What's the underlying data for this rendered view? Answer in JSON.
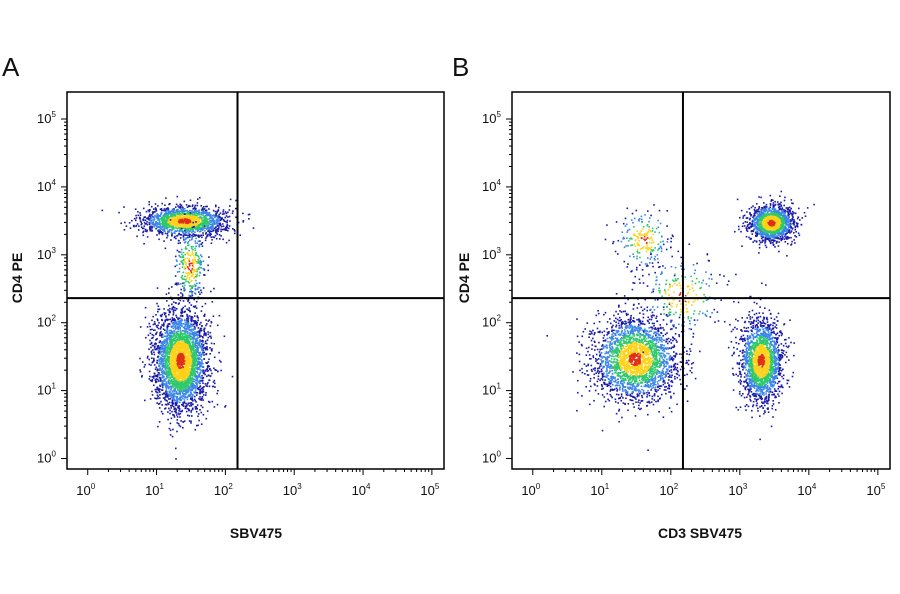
{
  "chart_data": [
    {
      "type": "scatter",
      "panel_label": "A",
      "title": "",
      "xlabel": "SBV475",
      "ylabel": "CD4 PE",
      "x_scale": "log",
      "y_scale": "log",
      "xlim": [
        0.5,
        150000
      ],
      "ylim": [
        0.7,
        250000
      ],
      "x_ticks": [
        1,
        10,
        100,
        1000,
        10000,
        100000
      ],
      "y_ticks": [
        1,
        10,
        100,
        1000,
        10000,
        100000
      ],
      "tick_labels": [
        {
          "base": "10",
          "exp": "0"
        },
        {
          "base": "10",
          "exp": "1"
        },
        {
          "base": "10",
          "exp": "2"
        },
        {
          "base": "10",
          "exp": "3"
        },
        {
          "base": "10",
          "exp": "4"
        },
        {
          "base": "10",
          "exp": "5"
        }
      ],
      "gate": {
        "x": 150,
        "y": 230
      },
      "grid": false,
      "legend": "none",
      "density_colors": [
        "#1a1aa8",
        "#3b86e8",
        "#2ec96b",
        "#ffd21a",
        "#e03018"
      ],
      "populations": [
        {
          "cx": 25,
          "cy": 3200,
          "log_sd_x": 0.3,
          "log_sd_y": 0.11,
          "count": 1600
        },
        {
          "cx": 22,
          "cy": 28,
          "log_sd_x": 0.19,
          "log_sd_y": 0.36,
          "count": 3200
        },
        {
          "cx": 30,
          "cy": 700,
          "log_sd_x": 0.12,
          "log_sd_y": 0.28,
          "count": 280
        }
      ]
    },
    {
      "type": "scatter",
      "panel_label": "B",
      "title": "",
      "xlabel": "CD3 SBV475",
      "ylabel": "CD4 PE",
      "x_scale": "log",
      "y_scale": "log",
      "xlim": [
        0.5,
        150000
      ],
      "ylim": [
        0.7,
        250000
      ],
      "x_ticks": [
        1,
        10,
        100,
        1000,
        10000,
        100000
      ],
      "y_ticks": [
        1,
        10,
        100,
        1000,
        10000,
        100000
      ],
      "tick_labels": [
        {
          "base": "10",
          "exp": "0"
        },
        {
          "base": "10",
          "exp": "1"
        },
        {
          "base": "10",
          "exp": "2"
        },
        {
          "base": "10",
          "exp": "3"
        },
        {
          "base": "10",
          "exp": "4"
        },
        {
          "base": "10",
          "exp": "5"
        }
      ],
      "gate": {
        "x": 150,
        "y": 230
      },
      "grid": false,
      "legend": "none",
      "density_colors": [
        "#1a1aa8",
        "#3b86e8",
        "#2ec96b",
        "#ffd21a",
        "#e03018"
      ],
      "populations": [
        {
          "cx": 2800,
          "cy": 3000,
          "log_sd_x": 0.16,
          "log_sd_y": 0.13,
          "count": 1500
        },
        {
          "cx": 30,
          "cy": 30,
          "log_sd_x": 0.3,
          "log_sd_y": 0.3,
          "count": 2400
        },
        {
          "cx": 2000,
          "cy": 28,
          "log_sd_x": 0.15,
          "log_sd_y": 0.3,
          "count": 1900
        },
        {
          "cx": 40,
          "cy": 1700,
          "log_sd_x": 0.2,
          "log_sd_y": 0.22,
          "count": 200
        },
        {
          "cx": 140,
          "cy": 250,
          "log_sd_x": 0.3,
          "log_sd_y": 0.3,
          "count": 240
        }
      ]
    }
  ]
}
